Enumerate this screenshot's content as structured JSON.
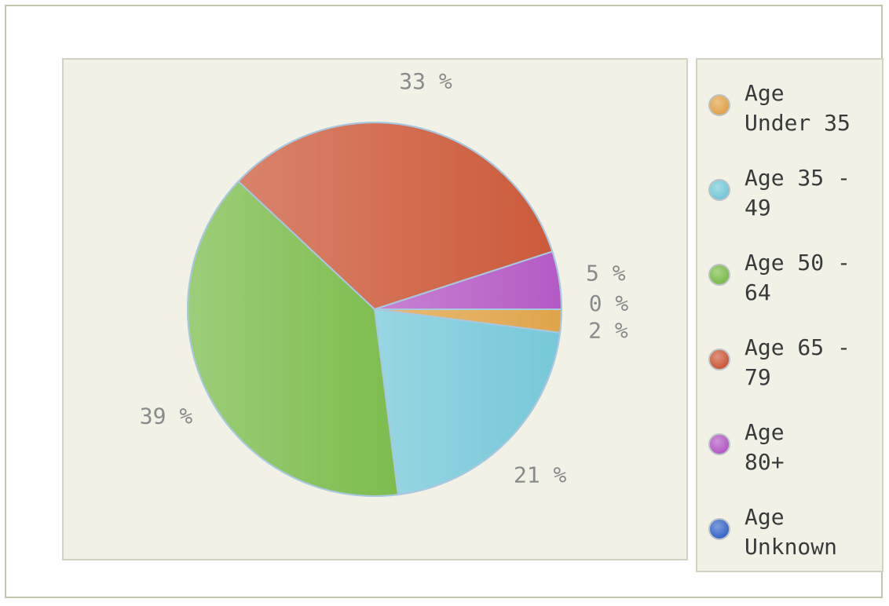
{
  "chart_data": {
    "type": "pie",
    "slices": [
      {
        "name": "Age Under 35",
        "value": 2,
        "label": "2 %",
        "color": "#e0a44a"
      },
      {
        "name": "Age 35 - 49",
        "value": 21,
        "label": "21 %",
        "color": "#76c8d8"
      },
      {
        "name": "Age 50 - 64",
        "value": 39,
        "label": "39 %",
        "color": "#7cbc4c"
      },
      {
        "name": "Age 65 - 79",
        "value": 33,
        "label": "33 %",
        "color": "#cc5a3a"
      },
      {
        "name": "Age 80+",
        "value": 5,
        "label": "5 %",
        "color": "#b45ac4"
      },
      {
        "name": "Age Unknown",
        "value": 0,
        "label": "0 %",
        "color": "#3a68c8"
      }
    ],
    "legend": {
      "position": "right",
      "items": [
        {
          "line1": "Age",
          "line2": "Under 35",
          "color": "#e0a44a"
        },
        {
          "line1": "Age 35 -",
          "line2": "49",
          "color": "#76c8d8"
        },
        {
          "line1": "Age 50 -",
          "line2": "64",
          "color": "#7cbc4c"
        },
        {
          "line1": "Age 65 -",
          "line2": "79",
          "color": "#cc5a3a"
        },
        {
          "line1": "Age",
          "line2": "80+",
          "color": "#b45ac4"
        },
        {
          "line1": "Age",
          "line2": "Unknown",
          "color": "#3a68c8"
        }
      ]
    }
  }
}
